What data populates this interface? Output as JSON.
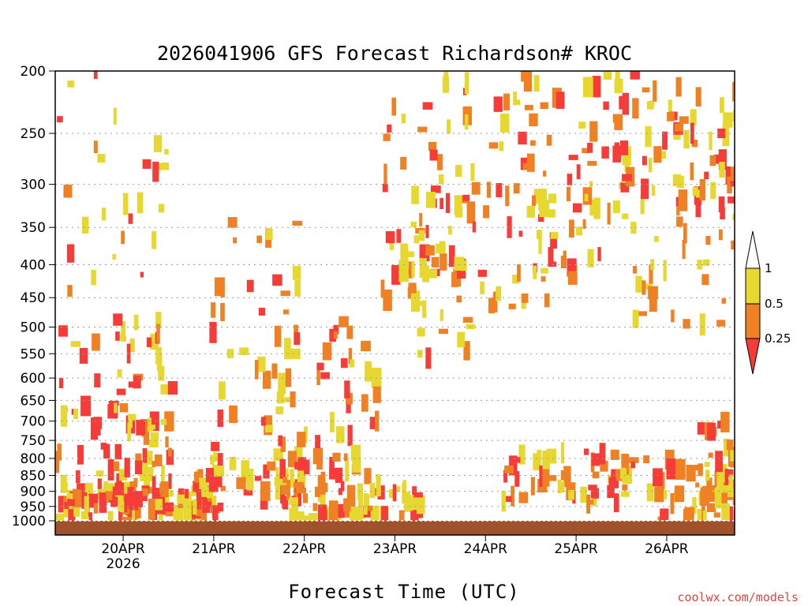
{
  "chart_data": {
    "type": "heatmap",
    "title": "2026041906 GFS Forecast Richardson# KROC",
    "xlabel": "Forecast Time (UTC)",
    "ylabel": "",
    "y_scale": "log",
    "y_reversed": true,
    "ylim": [
      1000,
      200
    ],
    "y_ticks": [
      "200",
      "250",
      "300",
      "350",
      "400",
      "450",
      "500",
      "550",
      "600",
      "650",
      "700",
      "750",
      "800",
      "850",
      "900",
      "950",
      "1000"
    ],
    "x_ticks": [
      {
        "label": "20APR",
        "sublabel": "2026",
        "time": "2026-04-20T00"
      },
      {
        "label": "21APR",
        "sublabel": "",
        "time": "2026-04-21T00"
      },
      {
        "label": "22APR",
        "sublabel": "",
        "time": "2026-04-22T00"
      },
      {
        "label": "23APR",
        "sublabel": "",
        "time": "2026-04-23T00"
      },
      {
        "label": "24APR",
        "sublabel": "",
        "time": "2026-04-24T00"
      },
      {
        "label": "25APR",
        "sublabel": "",
        "time": "2026-04-25T00"
      },
      {
        "label": "26APR",
        "sublabel": "",
        "time": "2026-04-26T00"
      }
    ],
    "xlim": [
      "2026-04-19T06",
      "2026-04-26T18"
    ],
    "grid": true,
    "ground_color": "#a0522d",
    "legend": {
      "position": "right",
      "labels": [
        "1",
        "0.5",
        "0.25"
      ],
      "bins": [
        {
          "range": [
            0.5,
            1
          ],
          "color": "#e6d830"
        },
        {
          "range": [
            0.25,
            0.5
          ],
          "color": "#f08024"
        },
        {
          "range": [
            0,
            0.25
          ],
          "color": "#f53c38"
        }
      ]
    },
    "regions": [
      {
        "t": [
          0,
          40
        ],
        "p": [
          920,
          1000
        ],
        "c": 0
      },
      {
        "t": [
          0,
          30
        ],
        "p": [
          200,
          900
        ],
        "c": 0
      },
      {
        "t": [
          15,
          30
        ],
        "p": [
          460,
          920
        ],
        "c": 0
      },
      {
        "t": [
          0,
          30
        ],
        "p": [
          880,
          960
        ],
        "c": 0
      },
      {
        "t": [
          32,
          44
        ],
        "p": [
          830,
          990
        ],
        "c": 0
      },
      {
        "t": [
          40,
          66
        ],
        "p": [
          330,
          1000
        ],
        "c": 1
      },
      {
        "t": [
          58,
          78
        ],
        "p": [
          820,
          1000
        ],
        "c": 0
      },
      {
        "t": [
          58,
          86
        ],
        "p": [
          490,
          980
        ],
        "c": 1
      },
      {
        "t": [
          80,
          96
        ],
        "p": [
          880,
          1000
        ],
        "c": 0
      },
      {
        "t": [
          86,
          110
        ],
        "p": [
          200,
          560
        ],
        "c": 1
      },
      {
        "t": [
          90,
          112
        ],
        "p": [
          300,
          420
        ],
        "c": 0
      },
      {
        "t": [
          108,
          132
        ],
        "p": [
          200,
          470
        ],
        "c": 1
      },
      {
        "t": [
          118,
          152
        ],
        "p": [
          780,
          960
        ],
        "c": 1
      },
      {
        "t": [
          120,
          150
        ],
        "p": [
          200,
          420
        ],
        "c": 1
      },
      {
        "t": [
          140,
          180
        ],
        "p": [
          220,
          330
        ],
        "c": 0
      },
      {
        "t": [
          150,
          180
        ],
        "p": [
          200,
          500
        ],
        "c": 1
      },
      {
        "t": [
          150,
          180
        ],
        "p": [
          800,
          1000
        ],
        "c": 1
      },
      {
        "t": [
          170,
          180
        ],
        "p": [
          700,
          1000
        ],
        "c": 1
      }
    ]
  },
  "footer": {
    "source": "coolwx.com/models"
  }
}
